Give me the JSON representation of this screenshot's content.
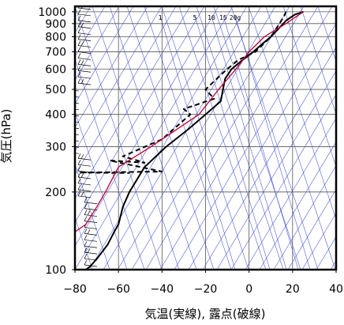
{
  "chart_data": {
    "type": "line",
    "title": "",
    "xlabel": "気温(実線), 露点(破線)",
    "ylabel": "気圧(hPa)",
    "xlim": [
      -80,
      40
    ],
    "ylim": [
      1050,
      100
    ],
    "y_scale": "log",
    "x_ticks": [
      "−80",
      "−60",
      "−40",
      "−20",
      "0",
      "20",
      "40"
    ],
    "x_tick_values": [
      -80,
      -60,
      -40,
      -20,
      0,
      20,
      40
    ],
    "y_ticks": [
      "100",
      "200",
      "300",
      "400",
      "500",
      "600",
      "700",
      "800",
      "900",
      "1000"
    ],
    "y_tick_values": [
      100,
      200,
      300,
      400,
      500,
      600,
      700,
      800,
      900,
      1000
    ],
    "mixing_ratio_labels": [
      "1",
      "5",
      "10",
      "15",
      "20g"
    ],
    "grid": true,
    "colors": {
      "temperature": "#000000",
      "dewpoint": "#000000",
      "parcel": "#c0003a",
      "background_lines": "#3344cc",
      "frame": "#000000"
    },
    "series": [
      {
        "key": "temperature",
        "style": "solid",
        "x": [
          25,
          21,
          17,
          13,
          10,
          6,
          2,
          -3,
          -8,
          -11,
          -12,
          -13,
          -20,
          -28,
          -38,
          -48,
          -55,
          -58,
          -60,
          -62,
          -65,
          -70,
          -73,
          -75
        ],
        "y": [
          1000,
          975,
          925,
          850,
          800,
          750,
          700,
          650,
          600,
          550,
          500,
          450,
          400,
          350,
          300,
          250,
          200,
          175,
          150,
          140,
          125,
          110,
          103,
          100
        ]
      },
      {
        "key": "dewpoint",
        "style": "dashed",
        "x": [
          17,
          16,
          14,
          10,
          3,
          -5,
          -8,
          -12,
          -20,
          -16,
          -30,
          -27,
          -40,
          -58,
          -48,
          -64,
          -40,
          -78,
          -55
        ],
        "y": [
          1000,
          960,
          900,
          800,
          700,
          650,
          620,
          580,
          500,
          460,
          420,
          400,
          320,
          275,
          260,
          265,
          240,
          238,
          237
        ]
      },
      {
        "key": "parcel",
        "style": "solid",
        "x": [
          25,
          21,
          17,
          12,
          7,
          0,
          -6,
          -14,
          -23,
          -45,
          -60,
          -66,
          -70,
          -75,
          -80
        ],
        "y": [
          1000,
          950,
          900,
          850,
          800,
          700,
          600,
          500,
          400,
          300,
          250,
          200,
          175,
          150,
          140
        ]
      }
    ],
    "wind_barbs": {
      "count": 42
    }
  }
}
